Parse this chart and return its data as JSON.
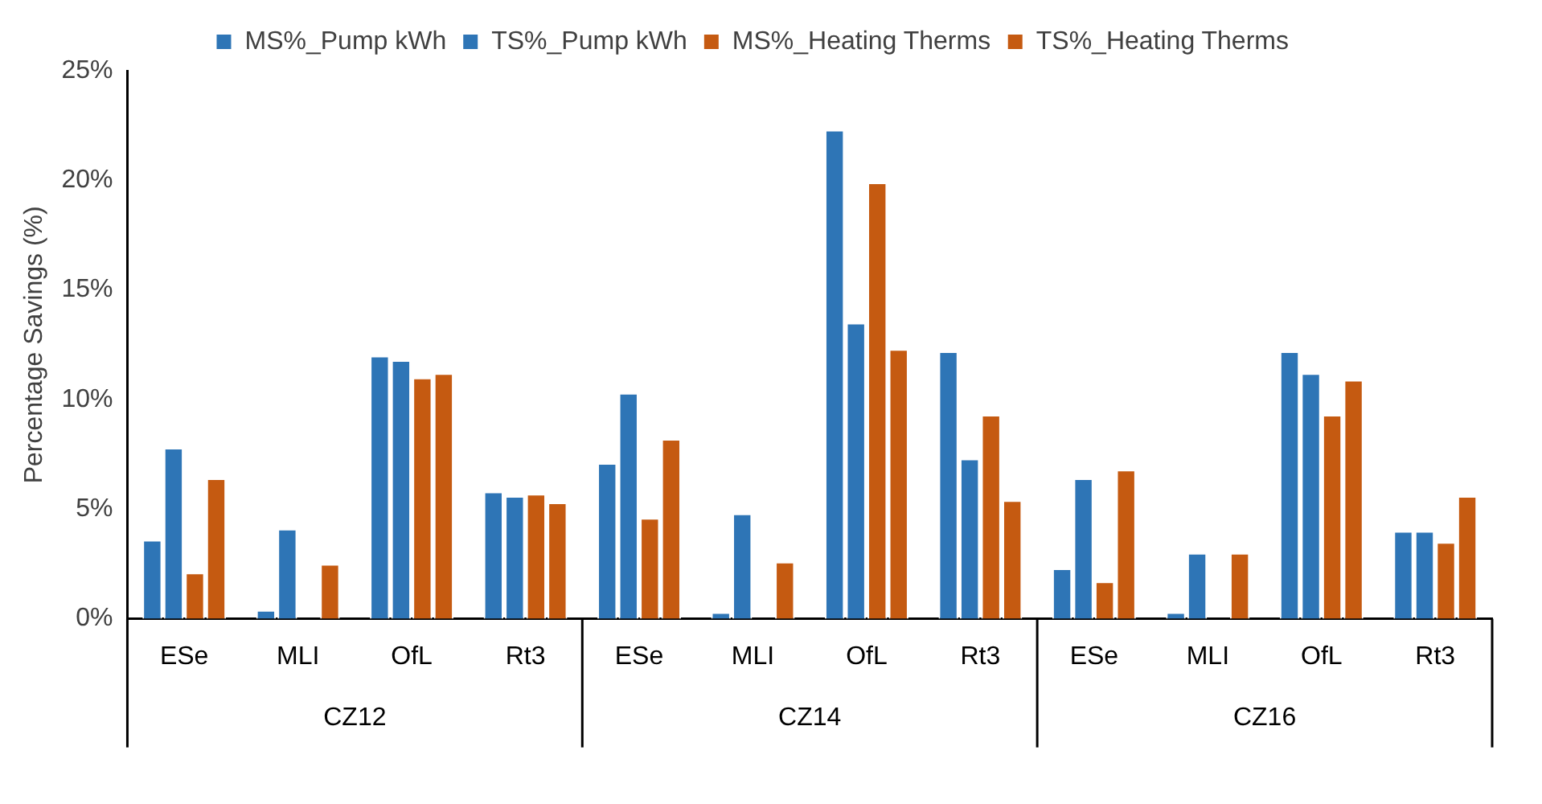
{
  "chart_data": {
    "type": "bar",
    "ylabel": "Percentage Savings (%)",
    "categories": [
      "ESe",
      "MLI",
      "OfL",
      "Rt3",
      "ESe",
      "MLI",
      "OfL",
      "Rt3",
      "ESe",
      "MLI",
      "OfL",
      "Rt3"
    ],
    "annotations": [
      "CZ12",
      "CZ14",
      "CZ16"
    ],
    "series": [
      {
        "name": "MS%_Pump kWh",
        "color": "#2e75b6",
        "values": [
          3.6,
          0.4,
          12.0,
          5.8,
          7.1,
          0.3,
          22.3,
          12.2,
          2.3,
          0.3,
          12.2,
          4.0
        ]
      },
      {
        "name": "TS%_Pump kWh",
        "color": "#2e75b6",
        "values": [
          7.8,
          4.1,
          11.8,
          5.6,
          10.3,
          4.8,
          13.5,
          7.3,
          6.4,
          3.0,
          11.2,
          4.0
        ]
      },
      {
        "name": "MS%_Heating Therms",
        "color": "#c55a11",
        "values": [
          2.1,
          0,
          11.0,
          5.7,
          4.6,
          0,
          19.9,
          9.3,
          1.7,
          0,
          9.3,
          3.5
        ]
      },
      {
        "name": "TS%_Heating Therms",
        "color": "#c55a11",
        "values": [
          6.4,
          2.5,
          11.2,
          5.3,
          8.2,
          2.6,
          12.3,
          5.4,
          6.8,
          3.0,
          10.9,
          5.6
        ]
      }
    ],
    "ylim": [
      0,
      25
    ],
    "yticks": [
      {
        "value": 0,
        "label": "0%"
      },
      {
        "value": 5,
        "label": "5%"
      },
      {
        "value": 10,
        "label": "10%"
      },
      {
        "value": 15,
        "label": "15%"
      },
      {
        "value": 20,
        "label": "20%"
      },
      {
        "value": 25,
        "label": "25%"
      }
    ],
    "grid": false,
    "legend": "top"
  }
}
